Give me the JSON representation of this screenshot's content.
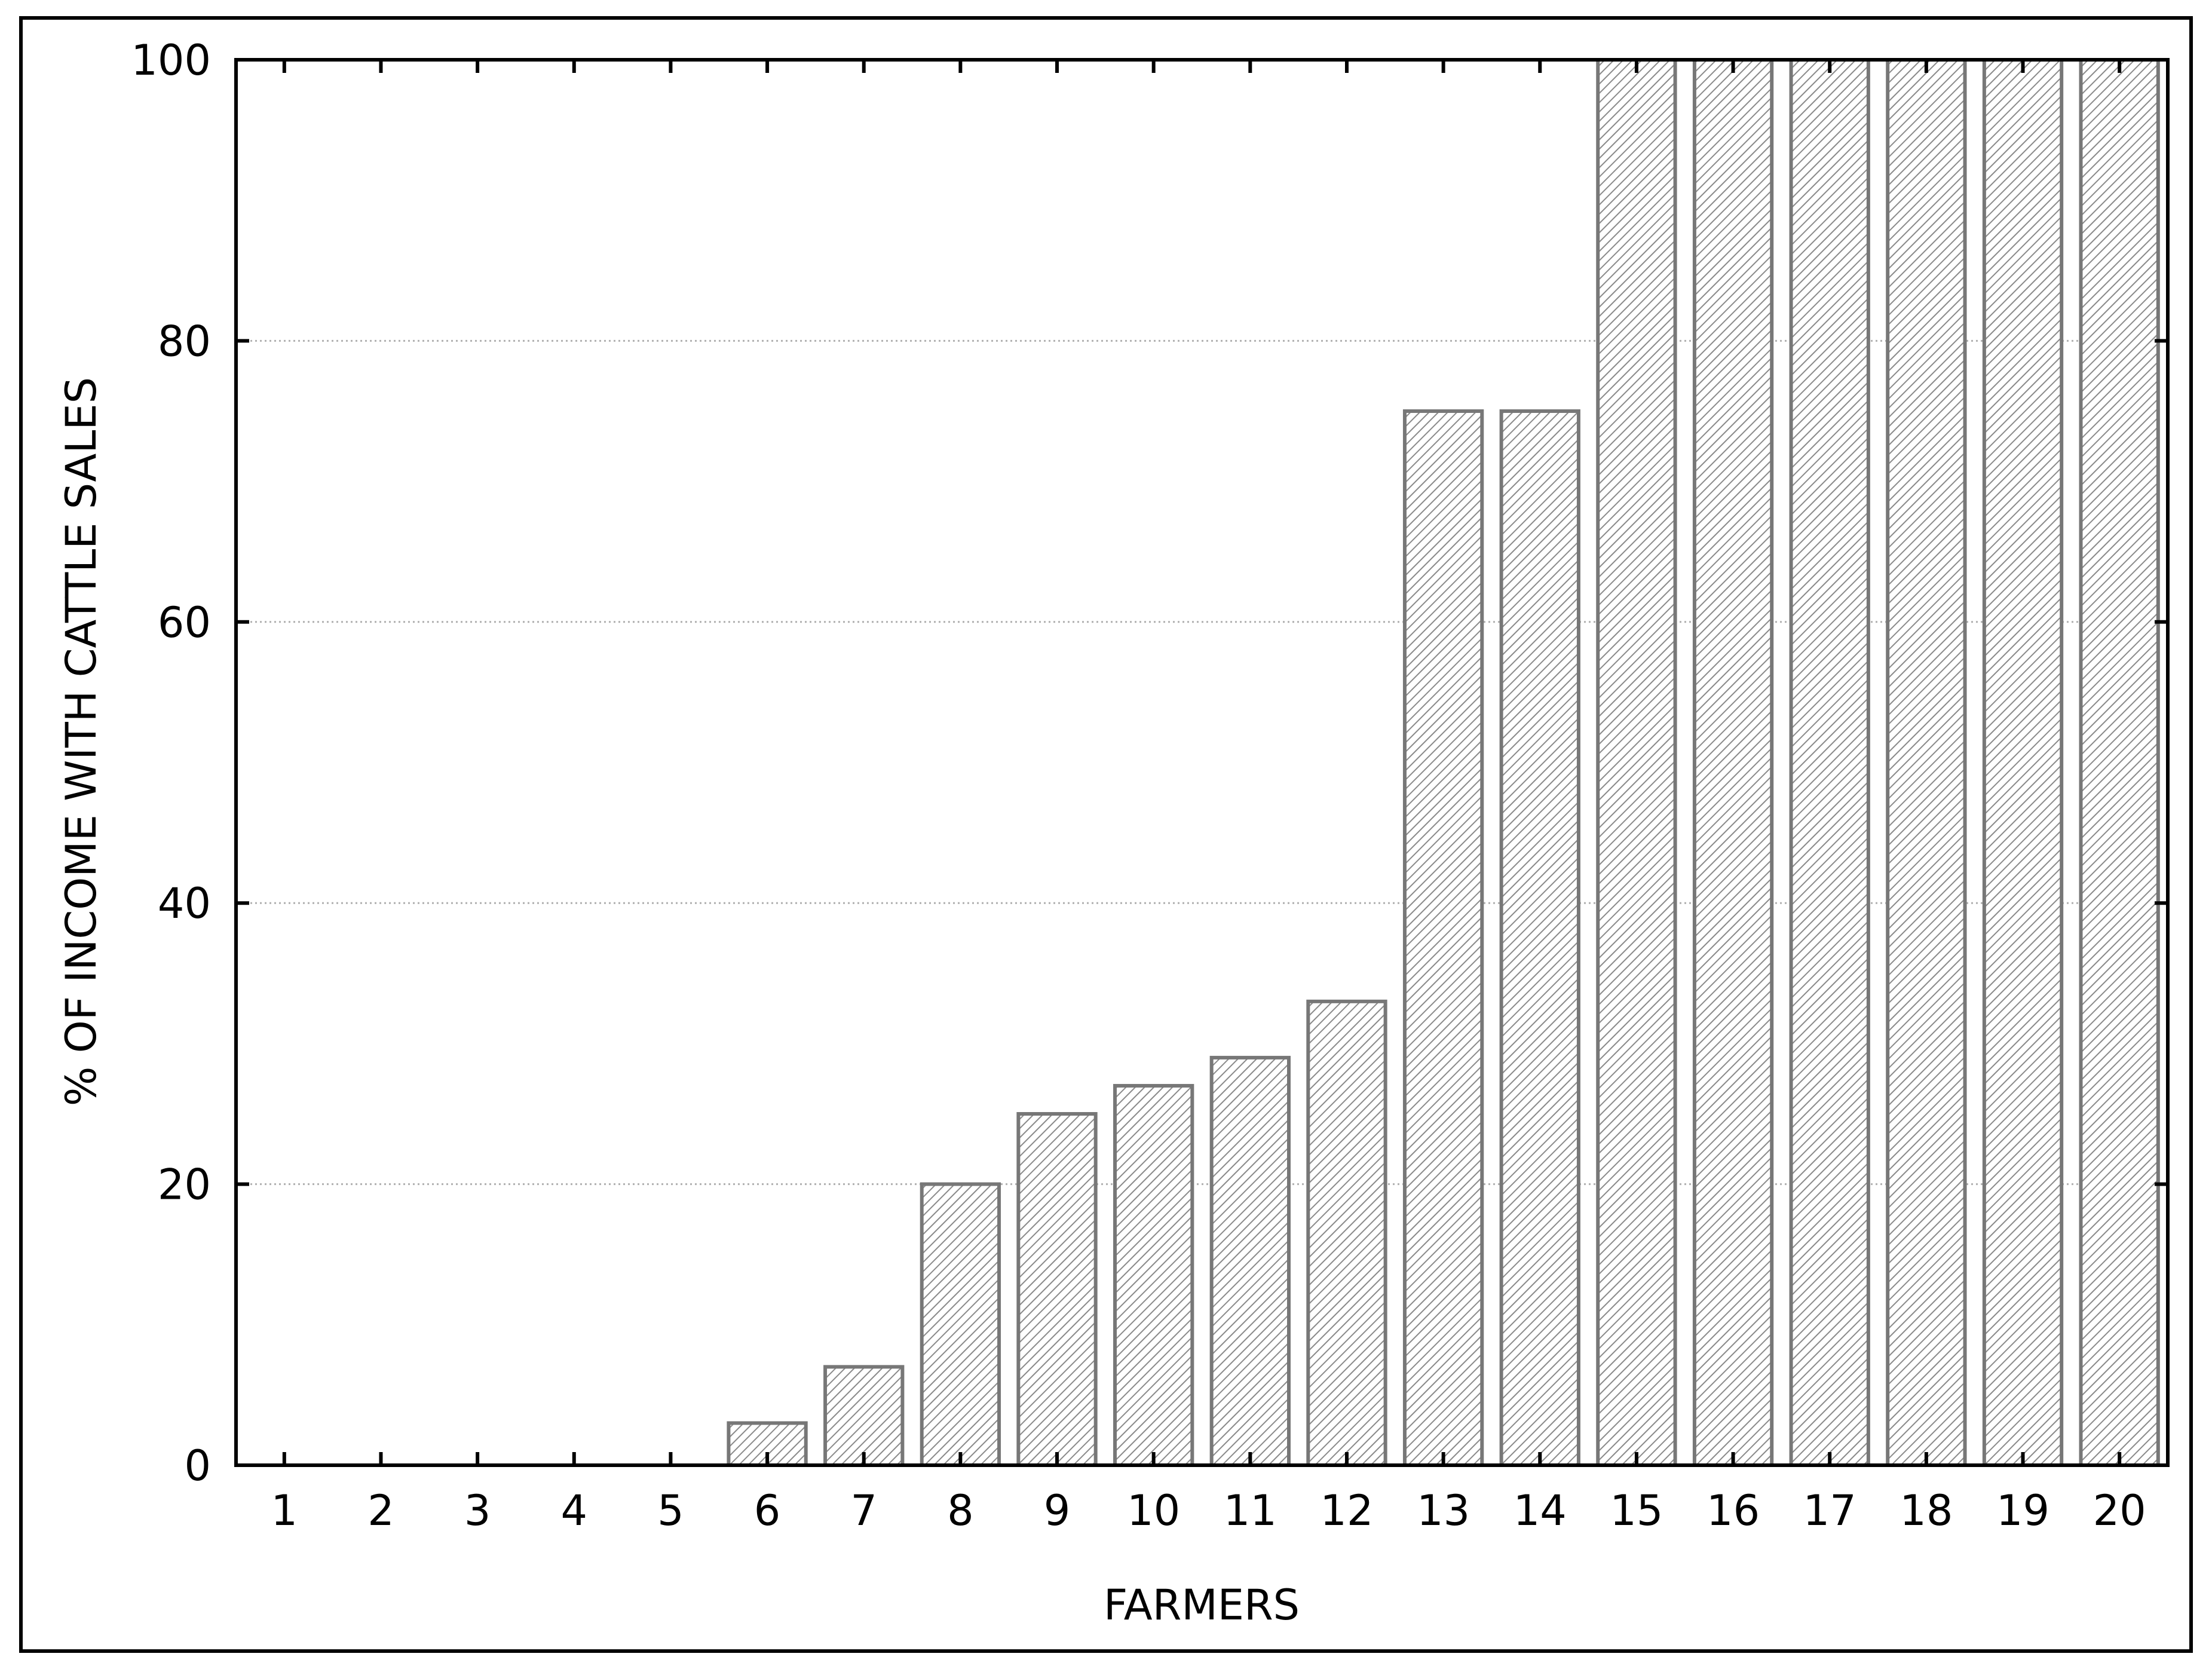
{
  "chart_data": {
    "type": "bar",
    "title": "",
    "xlabel": "FARMERS",
    "ylabel": "% OF INCOME WITH CATTLE SALES",
    "categories": [
      "1",
      "2",
      "3",
      "4",
      "5",
      "6",
      "7",
      "8",
      "9",
      "10",
      "11",
      "12",
      "13",
      "14",
      "15",
      "16",
      "17",
      "18",
      "19",
      "20"
    ],
    "values": [
      0,
      0,
      0,
      0,
      0,
      3,
      7,
      20,
      25,
      27,
      29,
      33,
      75,
      75,
      100,
      100,
      100,
      100,
      100,
      100
    ],
    "ylim": [
      0,
      100
    ],
    "yticks": [
      0,
      20,
      40,
      60,
      80,
      100
    ],
    "grid": "horizontal dotted",
    "legend": "none",
    "bar_fill": "diagonal hatch",
    "colors": {
      "bar_stroke": "#777777",
      "hatch": "#8a8a8a",
      "grid": "#b0b0b0",
      "axis": "#000000"
    }
  }
}
